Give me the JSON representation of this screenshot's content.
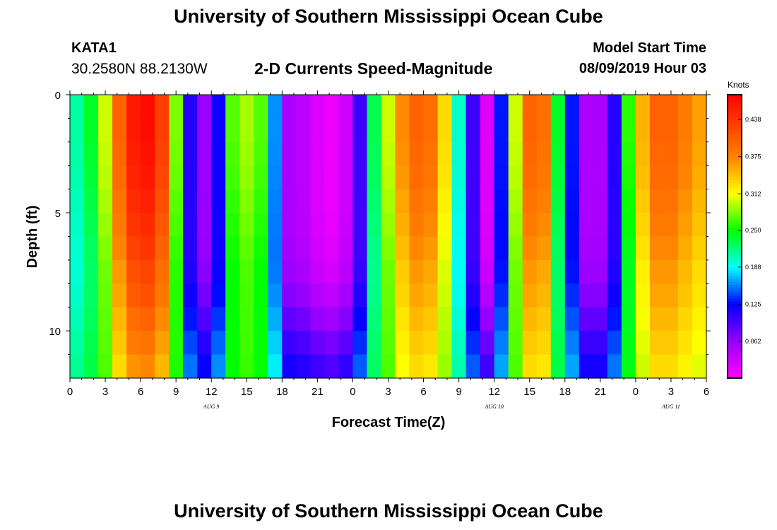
{
  "header": {
    "title": "University of Southern Mississippi Ocean Cube",
    "station_id": "KATA1",
    "station_coords": "30.2580N 88.2130W",
    "chart_title": "2-D Currents Speed-Magnitude",
    "model_label": "Model Start Time",
    "model_time": "08/09/2019 Hour 03"
  },
  "footer": {
    "title": "University of Southern Mississippi Ocean Cube"
  },
  "chart_data": {
    "type": "heatmap",
    "title": "2-D Currents Speed-Magnitude",
    "xlabel": "Forecast Time(Z)",
    "ylabel": "Depth (ft)",
    "x_range": [
      0,
      54
    ],
    "ylim": [
      0,
      12
    ],
    "x_ticks": [
      "0",
      "3",
      "6",
      "9",
      "12",
      "15",
      "18",
      "21",
      "0",
      "3",
      "6",
      "9",
      "12",
      "15",
      "18",
      "21",
      "0",
      "3",
      "6"
    ],
    "y_ticks": [
      "0",
      "5",
      "10"
    ],
    "y_tick_values": [
      0,
      5,
      10
    ],
    "date_labels": [
      {
        "text": "AUG  9",
        "hour": 12
      },
      {
        "text": "AUG  10",
        "hour": 36
      },
      {
        "text": "AUG  11",
        "hour": 51
      }
    ],
    "colorbar": {
      "unit": "Knots",
      "min": 0,
      "max": 0.48,
      "ticks": [
        "0.438",
        "0.375",
        "0.312",
        "0.250",
        "0.188",
        "0.125",
        "0.062"
      ],
      "tick_values": [
        0.438,
        0.375,
        0.312,
        0.25,
        0.188,
        0.125,
        0.062
      ]
    },
    "surface_speed_knots": [
      0.21,
      0.24,
      0.3,
      0.4,
      0.46,
      0.47,
      0.43,
      0.28,
      0.11,
      0.06,
      0.12,
      0.27,
      0.29,
      0.27,
      0.16,
      0.05,
      0.04,
      0.02,
      0.01,
      0.03,
      0.1,
      0.23,
      0.3,
      0.37,
      0.4,
      0.39,
      0.33,
      0.2,
      0.1,
      0.02,
      0.13,
      0.3,
      0.4,
      0.39,
      0.24,
      0.13,
      0.05,
      0.05,
      0.11,
      0.26,
      0.35,
      0.4,
      0.4,
      0.38,
      0.36
    ],
    "depth_profile_factor": [
      1.0,
      1.0,
      0.99,
      0.98,
      0.96,
      0.94,
      0.91,
      0.87,
      0.82,
      0.75,
      0.68,
      0.61
    ],
    "weak_flow_floor_knots": [
      0.05,
      0.05,
      0.05,
      0.05,
      0.06,
      0.07,
      0.09,
      0.12,
      0.16,
      0.19,
      0.21,
      0.22
    ],
    "notes": "speed(hour, depth row) = floor + (surface - floor) * profile; per-hour surface speed estimated from the image"
  }
}
